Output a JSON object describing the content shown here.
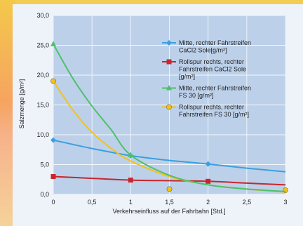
{
  "chart_data": {
    "type": "line",
    "xlabel": "Verkehrseinfluss auf der Fahrbahn [Std.]",
    "ylabel": "Salzmenge [g/m²]",
    "xlim": [
      0,
      3
    ],
    "ylim": [
      0,
      30
    ],
    "x_ticks": [
      "0",
      "0,5",
      "1",
      "1,5",
      "2",
      "2,5",
      "3"
    ],
    "y_ticks": [
      "0,0",
      "5,0",
      "10,0",
      "15,0",
      "20,0",
      "25,0",
      "30,0"
    ],
    "grid": true,
    "legend_position": "top-right",
    "series": [
      {
        "name": "Mitte, rechter Fahrstreifen CaCl2 Sole[g/m²]",
        "legend_lines": [
          "Mitte, rechter Fahrstreifen",
          "CaCl2 Sole[g/m²]"
        ],
        "color": "#3aa0df",
        "marker": "diamond",
        "points": [
          [
            0,
            9.1
          ],
          [
            1,
            6.5
          ],
          [
            2,
            5.1
          ]
        ],
        "curve": [
          [
            0,
            9.1
          ],
          [
            0.5,
            7.7
          ],
          [
            1,
            6.5
          ],
          [
            1.5,
            5.7
          ],
          [
            2,
            5.1
          ],
          [
            2.5,
            4.4
          ],
          [
            3,
            3.8
          ]
        ]
      },
      {
        "name": "Rollspur rechts, rechter Fahrstreifen CaCl2 Sole [g/m²]",
        "legend_lines": [
          "Rollspur rechts, rechter",
          "Fahrstreifen CaCl2 Sole",
          "[g/m²]"
        ],
        "color": "#c8262c",
        "marker": "square",
        "points": [
          [
            0,
            3.0
          ],
          [
            1,
            2.4
          ],
          [
            2,
            2.2
          ]
        ],
        "curve": [
          [
            0,
            3.0
          ],
          [
            0.5,
            2.7
          ],
          [
            1,
            2.4
          ],
          [
            1.5,
            2.3
          ],
          [
            2,
            2.2
          ],
          [
            2.5,
            1.9
          ],
          [
            3,
            1.6
          ]
        ]
      },
      {
        "name": "Mitte, rechter Fahrstreifen FS 30 [g/m²]",
        "legend_lines": [
          "Mitte, rechter Fahrstreifen",
          "FS 30 [g/m²]"
        ],
        "color": "#4fc06a",
        "marker": "triangle",
        "points": [
          [
            0,
            25.2
          ],
          [
            1,
            6.6
          ]
        ],
        "curve": [
          [
            0,
            25.2
          ],
          [
            0.25,
            19.5
          ],
          [
            0.5,
            14.8
          ],
          [
            0.75,
            10.8
          ],
          [
            1,
            6.6
          ],
          [
            1.5,
            3.2
          ],
          [
            2,
            1.6
          ],
          [
            2.5,
            0.9
          ],
          [
            3,
            0.5
          ]
        ]
      },
      {
        "name": "Rollspur rechts, rechter Fahrstreifen FS 30 [g/m²]",
        "legend_lines": [
          "Rollspur rechts,  rechter",
          "Fahrstreifen FS 30 [g/m²]"
        ],
        "color": "#f2c21a",
        "marker": "circle",
        "points": [
          [
            0,
            19.0
          ],
          [
            1.5,
            0.9
          ],
          [
            3,
            0.7
          ]
        ],
        "curve": [
          [
            0,
            19.0
          ],
          [
            0.25,
            14.2
          ],
          [
            0.5,
            10.4
          ],
          [
            0.75,
            7.7
          ],
          [
            1,
            5.6
          ],
          [
            1.5,
            3.0
          ],
          [
            2,
            1.6
          ],
          [
            2.5,
            0.9
          ],
          [
            3,
            0.4
          ]
        ]
      }
    ]
  }
}
